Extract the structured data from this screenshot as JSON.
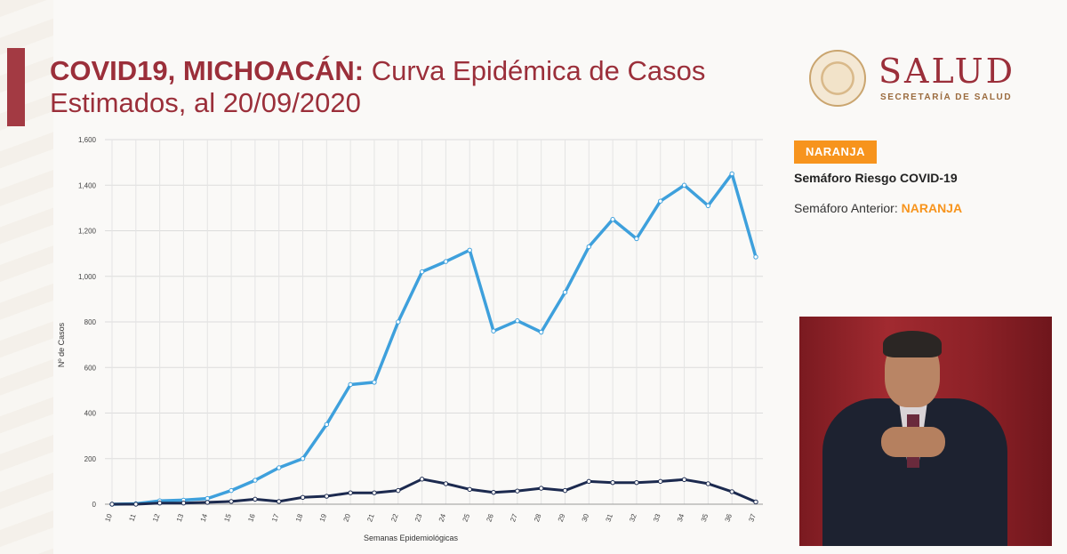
{
  "header": {
    "title_bold": "COVID19, MICHOACÁN:",
    "title_rest": " Curva Epidémica de Casos Estimados, al 20/09/2020"
  },
  "logo": {
    "brand": "SALUD",
    "subtitle": "SECRETARÍA DE SALUD"
  },
  "semaforo": {
    "badge": "NARANJA",
    "label": "Semáforo Riesgo COVID-19",
    "prev_label": "Semáforo Anterior: ",
    "prev_value": "NARANJA",
    "color": "#f7941d"
  },
  "chart_data": {
    "type": "line",
    "xlabel": "Semanas Epidemiológicas",
    "ylabel": "Nº de Casos",
    "ylim": [
      0,
      1600
    ],
    "yticks": [
      "0",
      "200",
      "400",
      "600",
      "800",
      "1,000",
      "1,200",
      "1,400",
      "1,600"
    ],
    "ytick_values": [
      0,
      200,
      400,
      600,
      800,
      1000,
      1200,
      1400,
      1600
    ],
    "grid": true,
    "categories": [
      "10",
      "11",
      "12",
      "13",
      "14",
      "15",
      "16",
      "17",
      "18",
      "19",
      "20",
      "21",
      "22",
      "23",
      "24",
      "25",
      "26",
      "27",
      "28",
      "29",
      "30",
      "31",
      "32",
      "33",
      "34",
      "35",
      "36",
      "37"
    ],
    "series": [
      {
        "color": "#3ea0dc",
        "values": [
          0,
          2,
          15,
          18,
          25,
          60,
          105,
          160,
          200,
          350,
          525,
          535,
          800,
          1020,
          1065,
          1115,
          760,
          805,
          755,
          930,
          1130,
          1250,
          1165,
          1330,
          1400,
          1310,
          1450,
          1085
        ]
      },
      {
        "color": "#1c2a4f",
        "values": [
          0,
          0,
          5,
          5,
          8,
          12,
          22,
          12,
          30,
          35,
          50,
          50,
          60,
          110,
          90,
          65,
          52,
          58,
          70,
          60,
          100,
          95,
          95,
          100,
          108,
          90,
          55,
          10
        ]
      }
    ]
  }
}
